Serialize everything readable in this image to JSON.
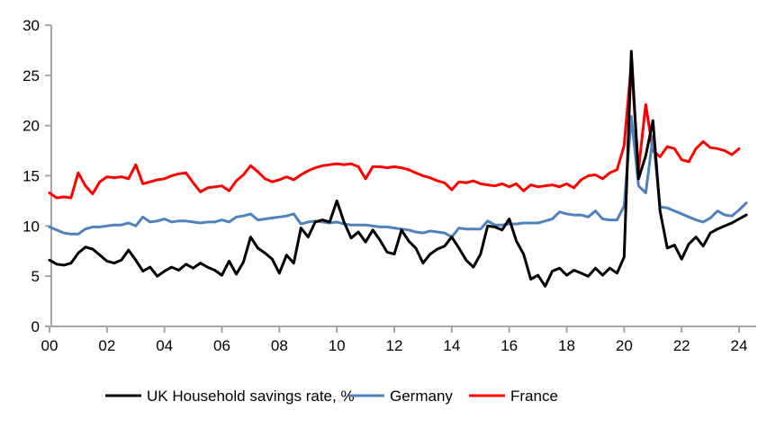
{
  "chart_data": {
    "type": "line",
    "title": "",
    "x_label": "",
    "y_label": "",
    "x_unit": "quarterly",
    "x_start": "2000Q1",
    "x_end": "2024Q2",
    "x_tick_labels": [
      "00",
      "02",
      "04",
      "06",
      "08",
      "10",
      "12",
      "14",
      "16",
      "18",
      "20",
      "22",
      "24"
    ],
    "x_tick_year_step": 2,
    "ylim": [
      0,
      30
    ],
    "y_ticks": [
      0,
      5,
      10,
      15,
      20,
      25,
      30
    ],
    "grid": false,
    "legend_position": "bottom",
    "axis_color": "#a6a6a6",
    "tick_font_size": 17,
    "legend_font_size": 17,
    "series": [
      {
        "name": "UK Household savings rate, %",
        "color": "#000000",
        "values": [
          6.6,
          6.2,
          6.1,
          6.3,
          7.3,
          7.9,
          7.7,
          7.1,
          6.5,
          6.3,
          6.6,
          7.6,
          6.6,
          5.5,
          5.9,
          5.0,
          5.5,
          5.9,
          5.6,
          6.2,
          5.8,
          6.3,
          5.9,
          5.6,
          5.1,
          6.5,
          5.2,
          6.4,
          8.9,
          7.8,
          7.3,
          6.7,
          5.3,
          7.1,
          6.3,
          9.8,
          8.9,
          10.4,
          10.6,
          10.4,
          12.5,
          10.4,
          8.8,
          9.4,
          8.4,
          9.6,
          8.6,
          7.4,
          7.2,
          9.6,
          8.5,
          7.8,
          6.3,
          7.2,
          7.7,
          8.0,
          8.9,
          7.8,
          6.6,
          5.9,
          7.2,
          10.0,
          9.9,
          9.6,
          10.7,
          8.5,
          7.2,
          4.7,
          5.1,
          4.0,
          5.5,
          5.8,
          5.1,
          5.6,
          5.3,
          5.0,
          5.8,
          5.1,
          5.8,
          5.3,
          6.9,
          27.4,
          14.7,
          17.0,
          20.5,
          11.5,
          7.8,
          8.1,
          6.7,
          8.2,
          8.9,
          8.0,
          9.3,
          9.7,
          10.0,
          10.3,
          10.7,
          11.1
        ]
      },
      {
        "name": "Germany",
        "color": "#4f81bd",
        "values": [
          9.9,
          9.6,
          9.3,
          9.2,
          9.2,
          9.7,
          9.9,
          9.9,
          10.0,
          10.1,
          10.1,
          10.3,
          10.0,
          10.9,
          10.4,
          10.5,
          10.7,
          10.4,
          10.5,
          10.5,
          10.4,
          10.3,
          10.4,
          10.4,
          10.6,
          10.4,
          10.9,
          11.0,
          11.2,
          10.6,
          10.7,
          10.8,
          10.9,
          11.0,
          11.2,
          10.2,
          10.4,
          10.5,
          10.4,
          10.3,
          10.4,
          10.2,
          10.1,
          10.1,
          10.1,
          10.0,
          9.9,
          9.9,
          9.8,
          9.7,
          9.6,
          9.4,
          9.3,
          9.5,
          9.4,
          9.3,
          8.9,
          9.8,
          9.7,
          9.7,
          9.7,
          10.5,
          10.1,
          10.1,
          10.2,
          10.2,
          10.3,
          10.3,
          10.3,
          10.5,
          10.7,
          11.4,
          11.2,
          11.1,
          11.1,
          10.9,
          11.5,
          10.7,
          10.6,
          10.6,
          12.0,
          20.9,
          14.0,
          13.3,
          18.9,
          11.9,
          11.8,
          11.5,
          11.2,
          10.9,
          10.6,
          10.4,
          10.8,
          11.5,
          11.1,
          11.0,
          11.6,
          12.3
        ]
      },
      {
        "name": "France",
        "color": "#ff0000",
        "values": [
          13.3,
          12.8,
          12.9,
          12.8,
          15.3,
          14.0,
          13.2,
          14.4,
          14.9,
          14.8,
          14.9,
          14.7,
          16.1,
          14.2,
          14.4,
          14.6,
          14.7,
          15.0,
          15.2,
          15.3,
          14.3,
          13.4,
          13.8,
          13.9,
          14.0,
          13.5,
          14.5,
          15.1,
          16.0,
          15.4,
          14.7,
          14.4,
          14.6,
          14.9,
          14.6,
          15.1,
          15.5,
          15.8,
          16.0,
          16.1,
          16.2,
          16.1,
          16.2,
          15.9,
          14.7,
          15.9,
          15.9,
          15.8,
          15.9,
          15.8,
          15.6,
          15.3,
          15.0,
          14.8,
          14.5,
          14.3,
          13.6,
          14.4,
          14.3,
          14.5,
          14.2,
          14.1,
          14.0,
          14.2,
          13.9,
          14.2,
          13.5,
          14.1,
          13.9,
          14.0,
          14.1,
          13.9,
          14.2,
          13.8,
          14.6,
          15.0,
          15.1,
          14.7,
          15.3,
          15.6,
          18.0,
          26.2,
          15.6,
          22.1,
          17.5,
          16.9,
          17.9,
          17.7,
          16.6,
          16.4,
          17.7,
          18.4,
          17.8,
          17.7,
          17.5,
          17.1,
          17.7
        ]
      }
    ]
  }
}
